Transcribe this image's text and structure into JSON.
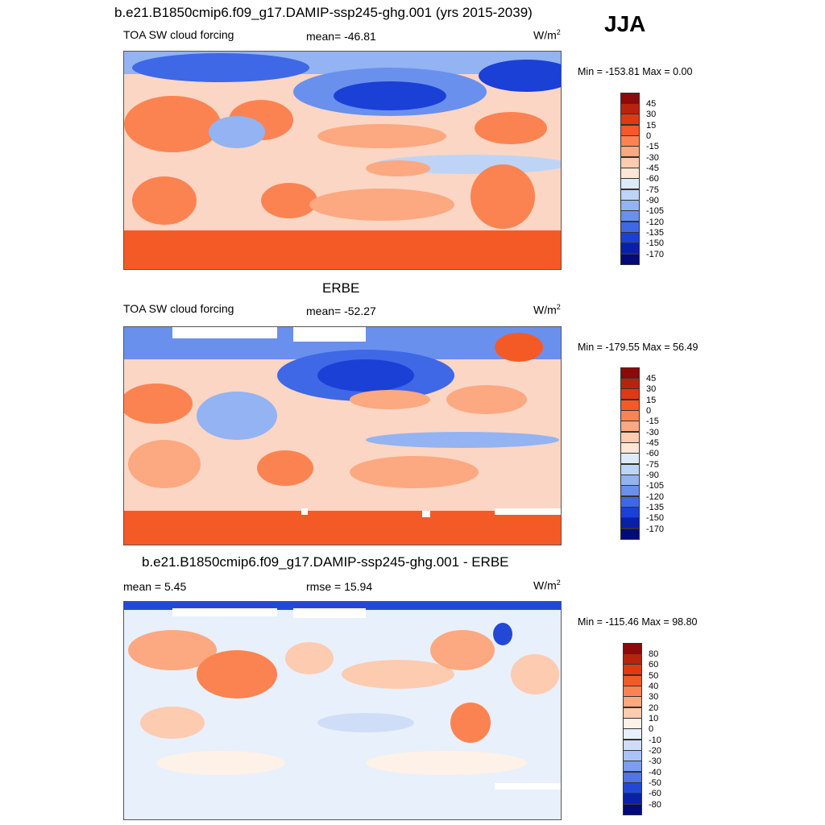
{
  "season": "JJA",
  "panels": [
    {
      "title": "b.e21.B1850cmip6.f09_g17.DAMIP-ssp245-ghg.001 (yrs 2015-2039)",
      "left_label": "TOA SW cloud forcing",
      "center_label": "mean= -46.81",
      "units": "W/m",
      "units_sup": "2",
      "range_text": "Min = -153.81 Max =   0.00",
      "colorbar": {
        "labels": [
          "45",
          "30",
          "15",
          "0",
          "-15",
          "-30",
          "-45",
          "-60",
          "-75",
          "-90",
          "-105",
          "-120",
          "-135",
          "-150",
          "-170"
        ],
        "colors": [
          "#8b0a0a",
          "#b8230e",
          "#e03a12",
          "#f45a26",
          "#fb8352",
          "#fca880",
          "#fdcbb0",
          "#fde6d6",
          "#ddeaf8",
          "#bed4f6",
          "#93b3f2",
          "#6a90ee",
          "#3e68e6",
          "#1b40d6",
          "#0a1fa8",
          "#030a7a"
        ]
      }
    },
    {
      "title": "ERBE",
      "left_label": "TOA SW cloud forcing",
      "center_label": "mean= -52.27",
      "units": "W/m",
      "units_sup": "2",
      "range_text": "Min = -179.55 Max =  56.49",
      "colorbar": {
        "labels": [
          "45",
          "30",
          "15",
          "0",
          "-15",
          "-30",
          "-45",
          "-60",
          "-75",
          "-90",
          "-105",
          "-120",
          "-135",
          "-150",
          "-170"
        ],
        "colors": [
          "#8b0a0a",
          "#b8230e",
          "#e03a12",
          "#f45a26",
          "#fb8352",
          "#fca880",
          "#fdcbb0",
          "#fde6d6",
          "#ddeaf8",
          "#bed4f6",
          "#93b3f2",
          "#6a90ee",
          "#3e68e6",
          "#1b40d6",
          "#0a1fa8",
          "#030a7a"
        ]
      }
    },
    {
      "title": "b.e21.B1850cmip6.f09_g17.DAMIP-ssp245-ghg.001 - ERBE",
      "left_label": "mean =   5.45",
      "center_label": "rmse =  15.94",
      "units": "W/m",
      "units_sup": "2",
      "range_text": "Min = -115.46 Max =  98.80",
      "colorbar": {
        "labels": [
          "80",
          "60",
          "50",
          "40",
          "30",
          "20",
          "10",
          "0",
          "-10",
          "-20",
          "-30",
          "-40",
          "-50",
          "-60",
          "-80"
        ],
        "colors": [
          "#8b0a0a",
          "#b8230e",
          "#e03a12",
          "#f45a26",
          "#fb8352",
          "#fca880",
          "#fdcbb0",
          "#fef1e8",
          "#e8f0fb",
          "#cfddf8",
          "#a9c3f4",
          "#7c9df0",
          "#4f75e8",
          "#2348d8",
          "#0b20a6",
          "#030a7a"
        ]
      }
    }
  ]
}
